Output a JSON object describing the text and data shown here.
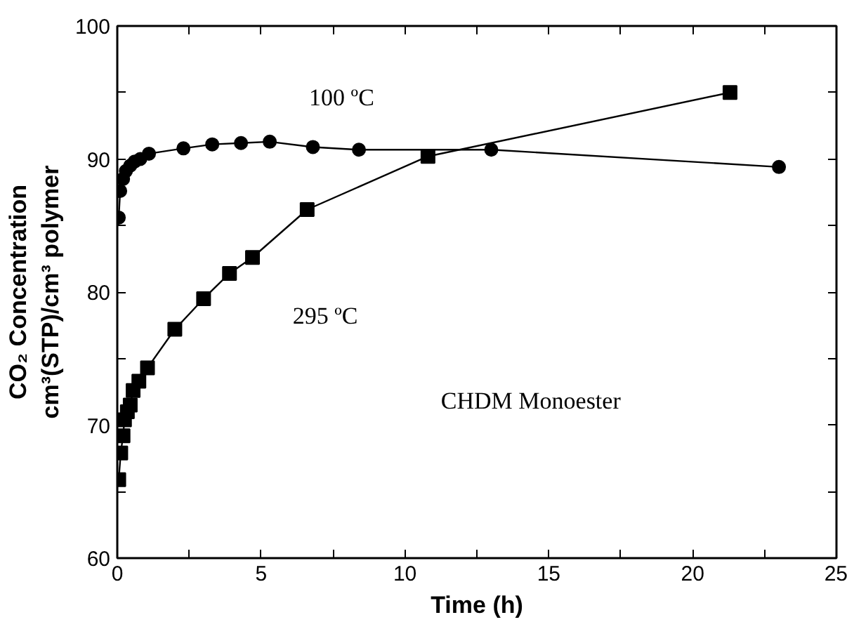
{
  "chart_data": {
    "type": "line",
    "xlabel": "Time (h)",
    "ylabel": "CO₂ Concentration\ncm³(STP)/cm³ polymer",
    "xlim": [
      0,
      25
    ],
    "ylim": [
      60,
      100
    ],
    "xticks": [
      0,
      {
        "value": 2.5,
        "label": null
      },
      5,
      {
        "value": 7.5,
        "label": null
      },
      10,
      {
        "value": 12.5,
        "label": null
      },
      15,
      {
        "value": 17.5,
        "label": null
      },
      20,
      {
        "value": 22.5,
        "label": null
      },
      25
    ],
    "yticks": [
      60,
      {
        "value": 65,
        "label": null
      },
      70,
      {
        "value": 75,
        "label": null
      },
      80,
      {
        "value": 85,
        "label": null
      },
      90,
      {
        "value": 95,
        "label": null
      },
      100
    ],
    "grid": false,
    "line_style": "solid",
    "series": [
      {
        "name": "100 ºC",
        "color": "#000000",
        "marker": "circle",
        "x": [
          0.05,
          0.1,
          0.2,
          0.3,
          0.45,
          0.6,
          0.8,
          1.1,
          2.3,
          3.3,
          4.3,
          5.3,
          6.8,
          8.4,
          13.0,
          23.0
        ],
        "values": [
          85.6,
          87.6,
          88.5,
          89.1,
          89.5,
          89.8,
          90.0,
          90.4,
          90.8,
          91.1,
          91.2,
          91.3,
          90.9,
          90.7,
          90.7,
          89.4
        ]
      },
      {
        "name": "295 ºC",
        "color": "#000000",
        "marker": "square",
        "x": [
          0.05,
          0.12,
          0.2,
          0.25,
          0.35,
          0.45,
          0.55,
          0.75,
          1.05,
          2.0,
          3.0,
          3.9,
          4.7,
          6.6,
          10.8,
          21.3
        ],
        "values": [
          65.9,
          67.9,
          69.2,
          70.4,
          71.0,
          71.5,
          72.6,
          73.3,
          74.3,
          77.2,
          79.5,
          81.4,
          82.6,
          86.2,
          90.2,
          95.0
        ]
      }
    ],
    "annotations": [
      "CHDM Monoester"
    ]
  }
}
